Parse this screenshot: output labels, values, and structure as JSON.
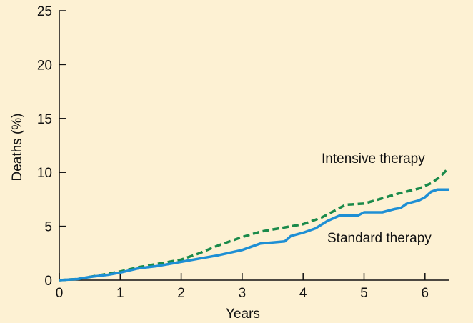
{
  "chart_data": {
    "type": "line",
    "xlabel": "Years",
    "ylabel": "Deaths (%)",
    "xlim": [
      0,
      6.4
    ],
    "ylim": [
      0,
      25
    ],
    "xticks": [
      "0",
      "1",
      "2",
      "3",
      "4",
      "5",
      "6"
    ],
    "yticks": [
      "0",
      "5",
      "10",
      "15",
      "20",
      "25"
    ],
    "grid": false,
    "legend": "none",
    "annotations": [
      "Intensive therapy",
      "Standard therapy"
    ],
    "series": [
      {
        "label": "Intensive therapy",
        "color": "#1a8a4a",
        "style": "dashed",
        "x": [
          0,
          0.3,
          0.5,
          0.8,
          1.0,
          1.3,
          1.6,
          2.0,
          2.3,
          2.6,
          3.0,
          3.3,
          3.6,
          4.0,
          4.3,
          4.5,
          4.7,
          5.0,
          5.3,
          5.6,
          5.9,
          6.1,
          6.25,
          6.35
        ],
        "y": [
          0,
          0.1,
          0.3,
          0.6,
          0.8,
          1.2,
          1.5,
          1.9,
          2.5,
          3.2,
          4.0,
          4.5,
          4.8,
          5.2,
          5.8,
          6.4,
          7.0,
          7.1,
          7.6,
          8.1,
          8.5,
          9.0,
          9.6,
          10.2
        ]
      },
      {
        "label": "Standard therapy",
        "color": "#1e8fd4",
        "style": "solid",
        "x": [
          0,
          0.3,
          0.5,
          0.8,
          1.0,
          1.3,
          1.6,
          2.0,
          2.3,
          2.6,
          3.0,
          3.2,
          3.3,
          3.5,
          3.7,
          3.8,
          4.0,
          4.2,
          4.4,
          4.6,
          4.9,
          5.0,
          5.3,
          5.5,
          5.6,
          5.7,
          5.9,
          6.0,
          6.1,
          6.2,
          6.4
        ],
        "y": [
          0,
          0.1,
          0.3,
          0.5,
          0.7,
          1.1,
          1.3,
          1.7,
          2.0,
          2.3,
          2.8,
          3.2,
          3.4,
          3.5,
          3.6,
          4.1,
          4.4,
          4.8,
          5.5,
          6.0,
          6.0,
          6.3,
          6.3,
          6.6,
          6.7,
          7.1,
          7.4,
          7.7,
          8.2,
          8.4,
          8.4
        ]
      }
    ]
  }
}
